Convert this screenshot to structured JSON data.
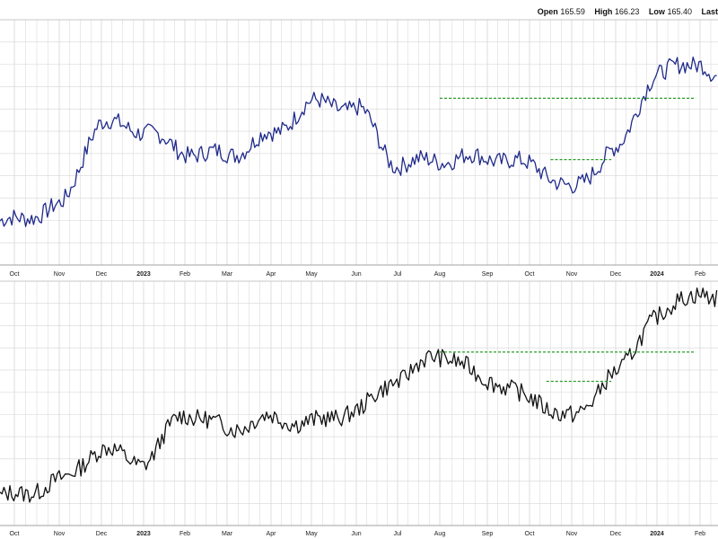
{
  "header": {
    "open_label": "Open",
    "open_value": "165.59",
    "high_label": "High",
    "high_value": "166.23",
    "low_label": "Low",
    "low_value": "165.40",
    "last_label": "Last"
  },
  "colors": {
    "top_line": "#1f2a8a",
    "bottom_line": "#111111",
    "resistance": "#2a9d2a",
    "grid": "#d6d6d6"
  },
  "chart_data": [
    {
      "type": "line",
      "panel": "top",
      "x_tick_labels": [
        "Oct",
        "Nov",
        "Dec",
        "2023",
        "Feb",
        "Mar",
        "Apr",
        "May",
        "Jun",
        "Jul",
        "Aug",
        "Sep",
        "Oct",
        "Nov",
        "Dec",
        "2024",
        "Feb"
      ],
      "x_tick_bold": [
        "2023",
        "2024"
      ],
      "series": [
        {
          "x": [
            0,
            1,
            2,
            3,
            4,
            5,
            6,
            7,
            8,
            9,
            10,
            11,
            12,
            13,
            14,
            15,
            16,
            16.4
          ],
          "values": [
            0.18,
            0.24,
            0.58,
            0.55,
            0.46,
            0.45,
            0.53,
            0.66,
            0.64,
            0.41,
            0.43,
            0.44,
            0.41,
            0.31,
            0.47,
            0.78,
            0.83,
            0.76
          ]
        }
      ],
      "resistance_lines": [
        {
          "x": [
            10.0,
            15.9
          ],
          "value": 0.68
        },
        {
          "x": [
            12.5,
            13.9
          ],
          "value": 0.43
        }
      ]
    },
    {
      "type": "line",
      "panel": "bottom",
      "x_tick_labels": [
        "Oct",
        "Nov",
        "Dec",
        "2023",
        "Feb",
        "Mar",
        "Apr",
        "May",
        "Jun",
        "Jul",
        "Aug",
        "Sep",
        "Oct",
        "Nov",
        "Dec",
        "2024",
        "Feb"
      ],
      "x_tick_bold": [
        "2023",
        "2024"
      ],
      "series": [
        {
          "x": [
            0,
            1,
            2,
            3,
            4,
            5,
            6,
            7,
            8,
            9,
            10,
            11,
            12,
            13,
            14,
            15,
            16,
            16.4
          ],
          "values": [
            0.12,
            0.18,
            0.31,
            0.26,
            0.46,
            0.4,
            0.44,
            0.42,
            0.47,
            0.6,
            0.7,
            0.6,
            0.52,
            0.44,
            0.62,
            0.86,
            0.96,
            0.92
          ]
        }
      ],
      "resistance_lines": [
        {
          "x": [
            10.0,
            15.9
          ],
          "value": 0.71
        },
        {
          "x": [
            12.4,
            13.9
          ],
          "value": 0.59
        }
      ]
    }
  ]
}
